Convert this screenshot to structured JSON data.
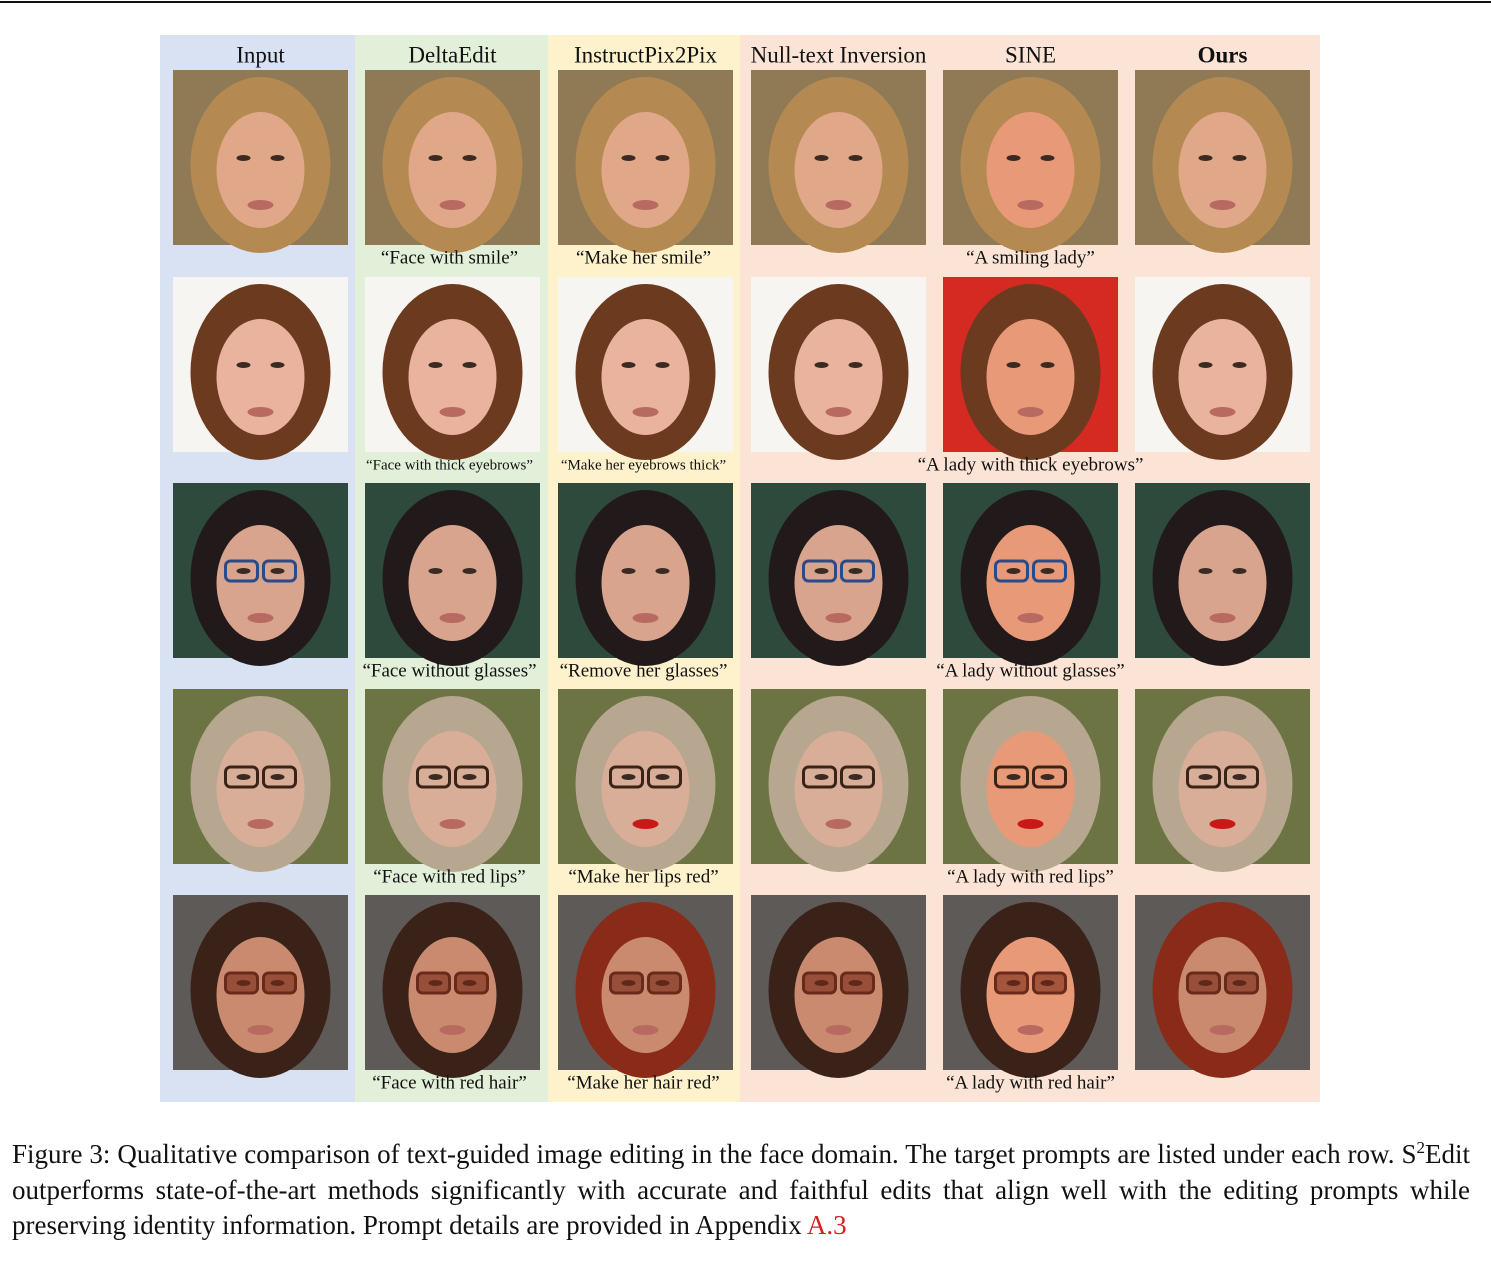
{
  "figure": {
    "columns": [
      "Input",
      "DeltaEdit",
      "InstructPix2Pix",
      "Null-text Inversion",
      "SINE",
      "Ours"
    ],
    "rows": [
      {
        "deltaedit_prompt": "“Face with smile”",
        "instructpix2pix_prompt": "“Make her smile”",
        "shared_prompt": "“A smiling lady”"
      },
      {
        "deltaedit_prompt": "“Face with thick eyebrows”",
        "instructpix2pix_prompt": "“Make her eyebrows thick”",
        "shared_prompt": "“A lady with thick eyebrows”"
      },
      {
        "deltaedit_prompt": "“Face without glasses”",
        "instructpix2pix_prompt": "“Remove her glasses”",
        "shared_prompt": "“A lady without glasses”"
      },
      {
        "deltaedit_prompt": "“Face with red lips”",
        "instructpix2pix_prompt": "“Make her lips red”",
        "shared_prompt": "“A lady with red lips”"
      },
      {
        "deltaedit_prompt": "“Face with red hair”",
        "instructpix2pix_prompt": "“Make her hair red”",
        "shared_prompt": "“A lady with red hair”"
      }
    ]
  },
  "caption": {
    "intro": "Figure 3: Qualitative comparison of text-guided image editing in the face domain. The target prompts are listed under each row.",
    "method_base": "S",
    "method_sup": "2",
    "body": "Edit outperforms state-of-the-art methods significantly with accurate and faithful edits that align well with the editing prompts while preserving identity information. Prompt details are provided in Appendix",
    "ref": "A.3"
  }
}
